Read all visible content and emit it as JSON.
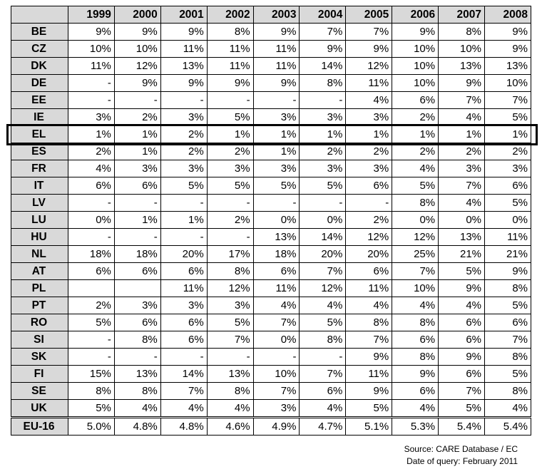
{
  "table": {
    "columns": [
      "1999",
      "2000",
      "2001",
      "2002",
      "2003",
      "2004",
      "2005",
      "2006",
      "2007",
      "2008"
    ],
    "rows": [
      {
        "country": "BE",
        "values": [
          "9%",
          "9%",
          "9%",
          "8%",
          "9%",
          "7%",
          "7%",
          "9%",
          "8%",
          "9%"
        ]
      },
      {
        "country": "CZ",
        "values": [
          "10%",
          "10%",
          "11%",
          "11%",
          "11%",
          "9%",
          "9%",
          "10%",
          "10%",
          "9%"
        ]
      },
      {
        "country": "DK",
        "values": [
          "11%",
          "12%",
          "13%",
          "11%",
          "11%",
          "14%",
          "12%",
          "10%",
          "13%",
          "13%"
        ]
      },
      {
        "country": "DE",
        "values": [
          "-",
          "9%",
          "9%",
          "9%",
          "9%",
          "8%",
          "11%",
          "10%",
          "9%",
          "10%"
        ]
      },
      {
        "country": "EE",
        "values": [
          "-",
          "-",
          "-",
          "-",
          "-",
          "-",
          "4%",
          "6%",
          "7%",
          "7%"
        ]
      },
      {
        "country": "IE",
        "values": [
          "3%",
          "2%",
          "3%",
          "5%",
          "3%",
          "3%",
          "3%",
          "2%",
          "4%",
          "5%"
        ]
      },
      {
        "country": "EL",
        "values": [
          "1%",
          "1%",
          "2%",
          "1%",
          "1%",
          "1%",
          "1%",
          "1%",
          "1%",
          "1%"
        ]
      },
      {
        "country": "ES",
        "values": [
          "2%",
          "1%",
          "2%",
          "2%",
          "1%",
          "2%",
          "2%",
          "2%",
          "2%",
          "2%"
        ]
      },
      {
        "country": "FR",
        "values": [
          "4%",
          "3%",
          "3%",
          "3%",
          "3%",
          "3%",
          "3%",
          "4%",
          "3%",
          "3%"
        ]
      },
      {
        "country": "IT",
        "values": [
          "6%",
          "6%",
          "5%",
          "5%",
          "5%",
          "5%",
          "6%",
          "5%",
          "7%",
          "6%"
        ]
      },
      {
        "country": "LV",
        "values": [
          "-",
          "-",
          "-",
          "-",
          "-",
          "-",
          "-",
          "8%",
          "4%",
          "5%"
        ]
      },
      {
        "country": "LU",
        "values": [
          "0%",
          "1%",
          "1%",
          "2%",
          "0%",
          "0%",
          "2%",
          "0%",
          "0%",
          "0%"
        ]
      },
      {
        "country": "HU",
        "values": [
          "-",
          "-",
          "-",
          "-",
          "13%",
          "14%",
          "12%",
          "12%",
          "13%",
          "11%"
        ]
      },
      {
        "country": "NL",
        "values": [
          "18%",
          "18%",
          "20%",
          "17%",
          "18%",
          "20%",
          "20%",
          "25%",
          "21%",
          "21%"
        ]
      },
      {
        "country": "AT",
        "values": [
          "6%",
          "6%",
          "6%",
          "8%",
          "6%",
          "7%",
          "6%",
          "7%",
          "5%",
          "9%"
        ]
      },
      {
        "country": "PL",
        "values": [
          "",
          "",
          "11%",
          "12%",
          "11%",
          "12%",
          "11%",
          "10%",
          "9%",
          "8%"
        ]
      },
      {
        "country": "PT",
        "values": [
          "2%",
          "3%",
          "3%",
          "3%",
          "4%",
          "4%",
          "4%",
          "4%",
          "4%",
          "5%"
        ]
      },
      {
        "country": "RO",
        "values": [
          "5%",
          "6%",
          "6%",
          "5%",
          "7%",
          "5%",
          "8%",
          "8%",
          "6%",
          "6%"
        ]
      },
      {
        "country": "SI",
        "values": [
          "-",
          "8%",
          "6%",
          "7%",
          "0%",
          "8%",
          "7%",
          "6%",
          "6%",
          "7%"
        ]
      },
      {
        "country": "SK",
        "values": [
          "-",
          "-",
          "-",
          "-",
          "-",
          "-",
          "9%",
          "8%",
          "9%",
          "8%"
        ]
      },
      {
        "country": "FI",
        "values": [
          "15%",
          "13%",
          "14%",
          "13%",
          "10%",
          "7%",
          "11%",
          "9%",
          "6%",
          "5%"
        ]
      },
      {
        "country": "SE",
        "values": [
          "8%",
          "8%",
          "7%",
          "8%",
          "7%",
          "6%",
          "9%",
          "6%",
          "7%",
          "8%"
        ]
      },
      {
        "country": "UK",
        "values": [
          "5%",
          "4%",
          "4%",
          "4%",
          "3%",
          "4%",
          "5%",
          "4%",
          "5%",
          "4%"
        ]
      }
    ],
    "total": {
      "country": "EU-16",
      "values": [
        "5.0%",
        "4.8%",
        "4.8%",
        "4.6%",
        "4.9%",
        "4.7%",
        "5.1%",
        "5.3%",
        "5.4%",
        "5.4%"
      ]
    },
    "highlighted_row": "EL"
  },
  "footer": {
    "source": "Source: CARE Database / EC",
    "date": "Date of query: February 2011"
  }
}
